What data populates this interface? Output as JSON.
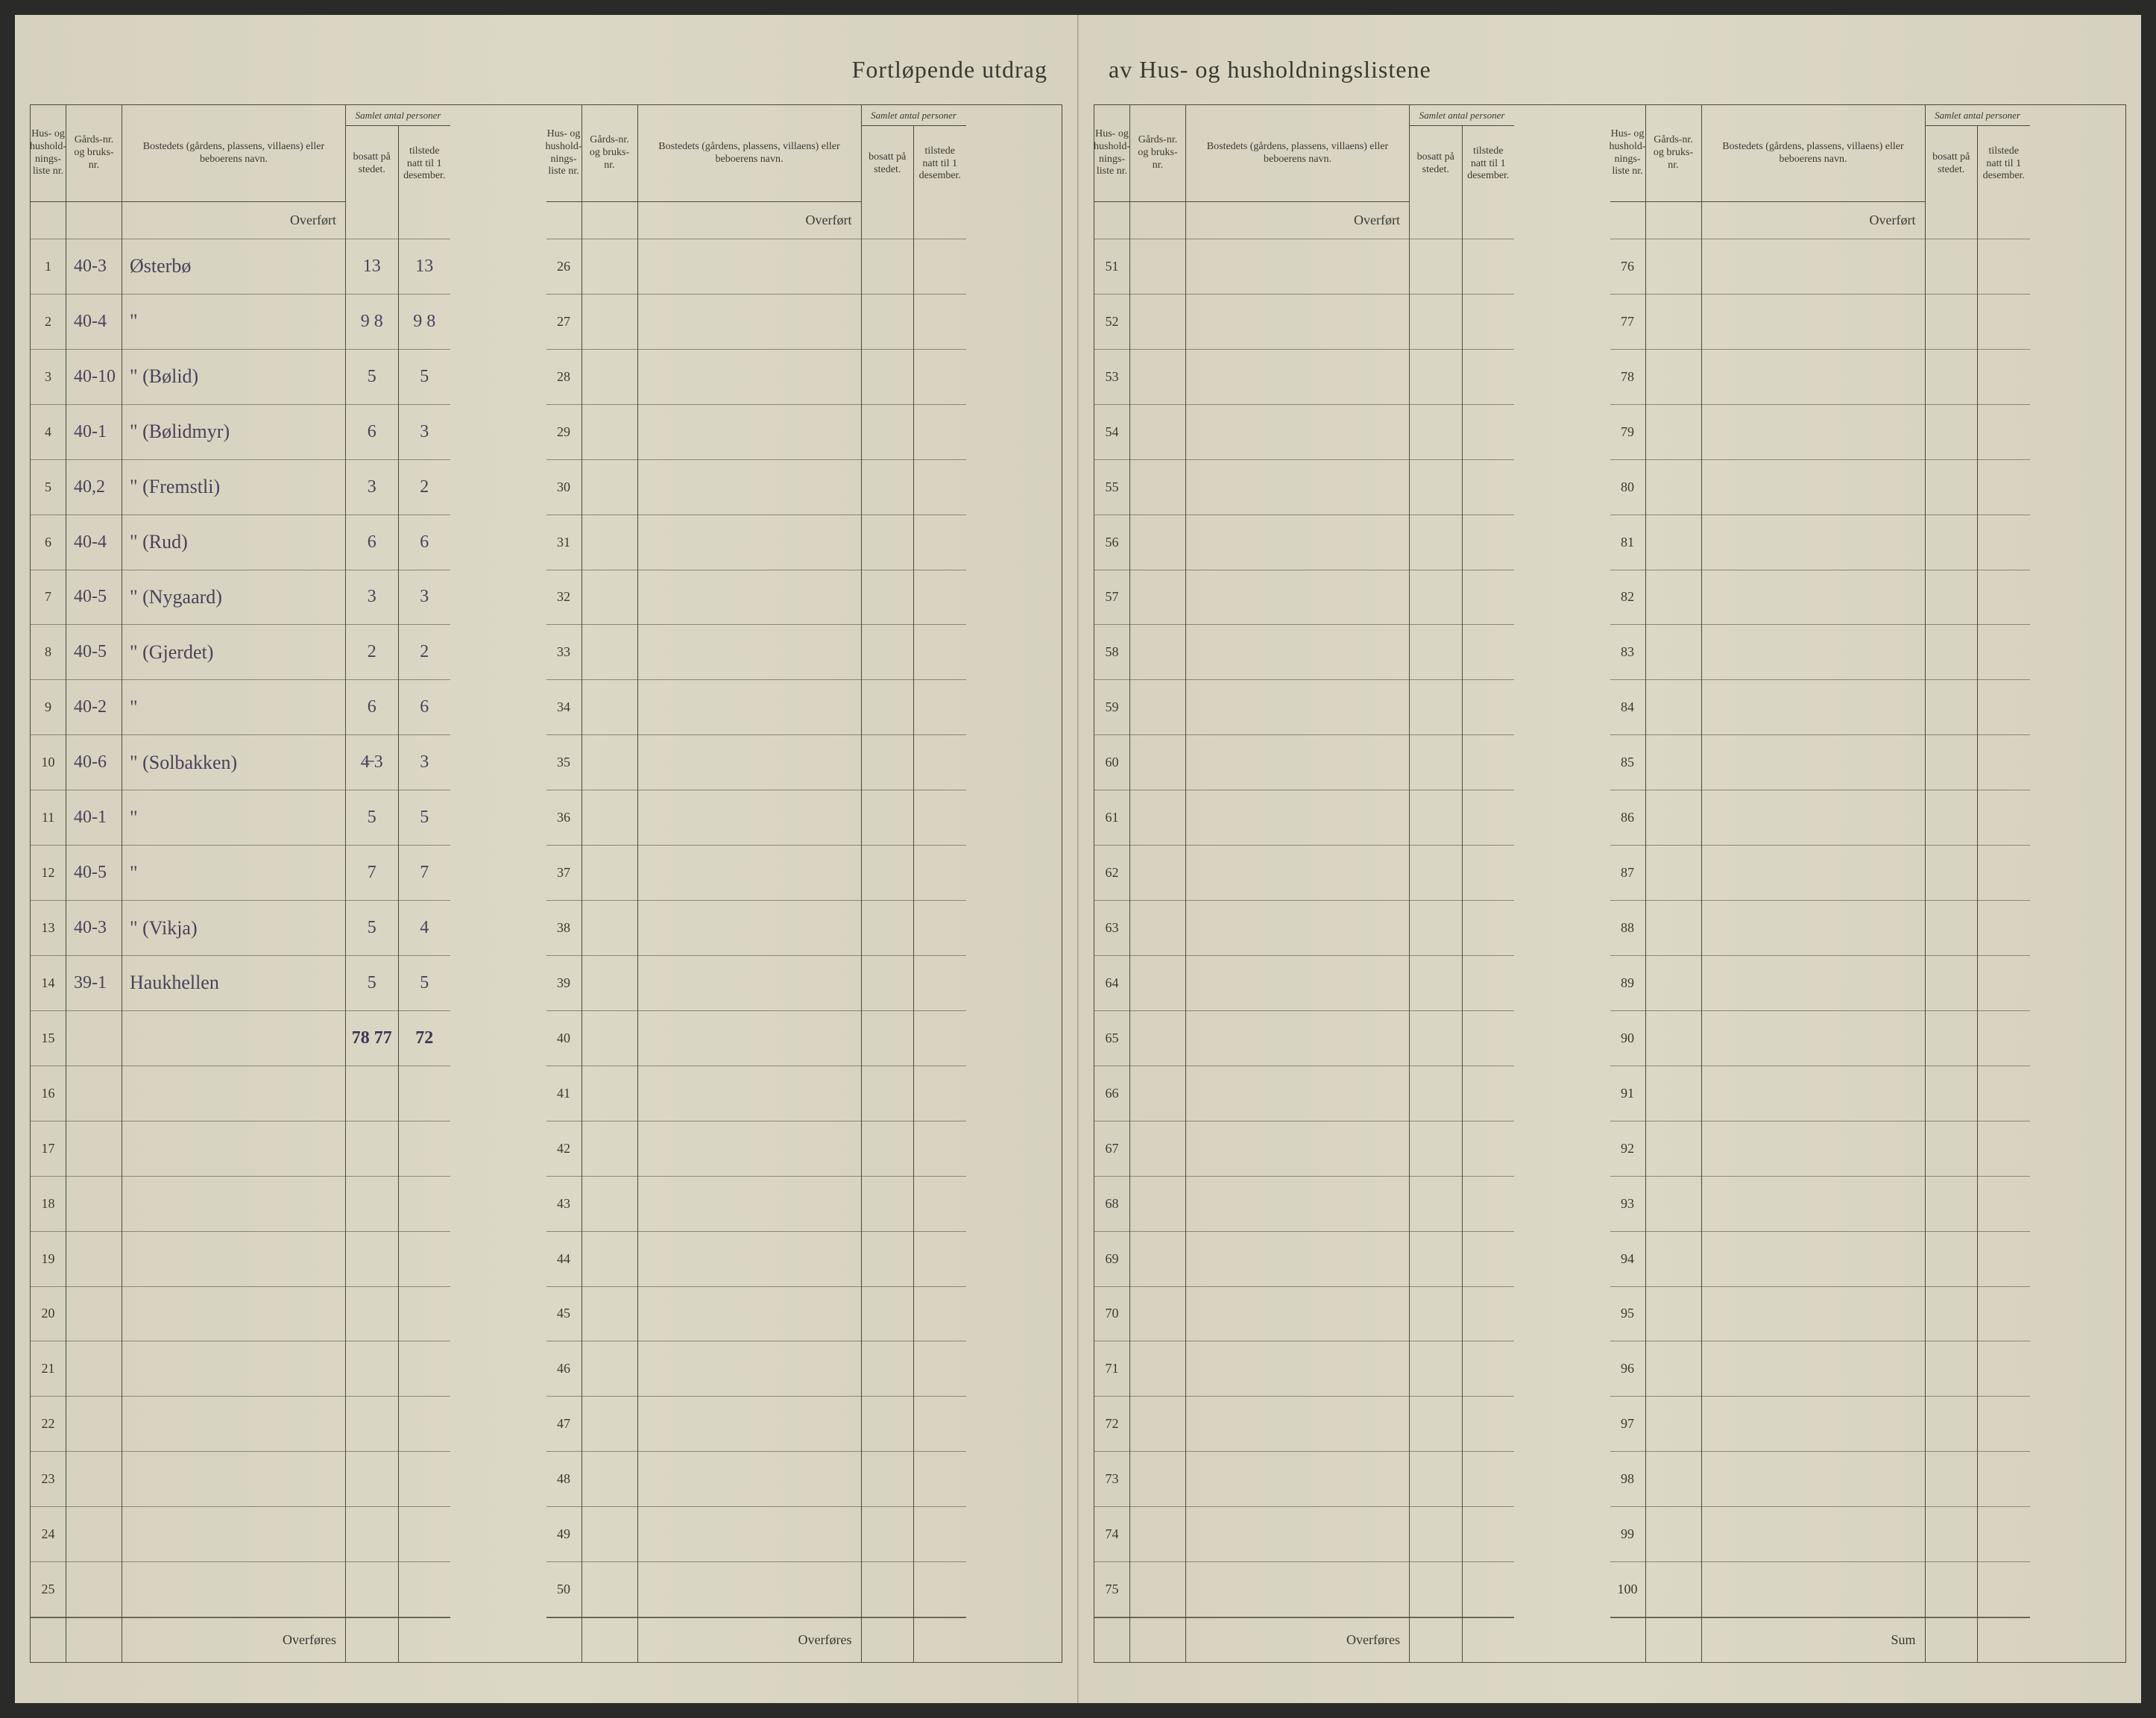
{
  "title_left": "Fortløpende utdrag",
  "title_right": "av Hus- og husholdningslistene",
  "headers": {
    "liste": "Hus- og hushold-nings-liste nr.",
    "gards": "Gårds-nr. og bruks-nr.",
    "bosted": "Bostedets (gårdens, plassens, villaens) eller beboerens navn.",
    "person_span": "Samlet antal personer",
    "bosatt": "bosatt på stedet.",
    "tilstede": "tilstede natt til 1 desember."
  },
  "overfort": "Overført",
  "overfores": "Overføres",
  "sum": "Sum",
  "rows_per_block": 25,
  "entries": [
    {
      "n": 1,
      "gards": "40-3",
      "bosted": "Østerbø",
      "bosatt": "13",
      "tilstede": "13"
    },
    {
      "n": 2,
      "gards": "40-4",
      "bosted": "\"",
      "bosatt": "9 8",
      "tilstede": "9 8"
    },
    {
      "n": 3,
      "gards": "40-10",
      "bosted": "\"   (Bølid)",
      "bosatt": "5",
      "tilstede": "5"
    },
    {
      "n": 4,
      "gards": "40-1",
      "bosted": "\"   (Bølidmyr)",
      "bosatt": "6",
      "tilstede": "3"
    },
    {
      "n": 5,
      "gards": "40,2",
      "bosted": "\"   (Fremstli)",
      "bosatt": "3",
      "tilstede": "2"
    },
    {
      "n": 6,
      "gards": "40-4",
      "bosted": "\"   (Rud)",
      "bosatt": "6",
      "tilstede": "6"
    },
    {
      "n": 7,
      "gards": "40-5",
      "bosted": "\"   (Nygaard)",
      "bosatt": "3",
      "tilstede": "3"
    },
    {
      "n": 8,
      "gards": "40-5",
      "bosted": "\"   (Gjerdet)",
      "bosatt": "2",
      "tilstede": "2"
    },
    {
      "n": 9,
      "gards": "40-2",
      "bosted": "\"",
      "bosatt": "6",
      "tilstede": "6"
    },
    {
      "n": 10,
      "gards": "40-6",
      "bosted": "\"   (Solbakken)",
      "bosatt": "4̶ 3",
      "tilstede": "3"
    },
    {
      "n": 11,
      "gards": "40-1",
      "bosted": "\"",
      "bosatt": "5",
      "tilstede": "5"
    },
    {
      "n": 12,
      "gards": "40-5",
      "bosted": "\"",
      "bosatt": "7",
      "tilstede": "7"
    },
    {
      "n": 13,
      "gards": "40-3",
      "bosted": "\"   (Vikja)",
      "bosatt": "5",
      "tilstede": "4"
    },
    {
      "n": 14,
      "gards": "39-1",
      "bosted": "Haukhellen",
      "bosatt": "5",
      "tilstede": "5"
    }
  ],
  "total": {
    "bosatt": "78 77",
    "tilstede": "72"
  },
  "block_starts": [
    1,
    26,
    51,
    76
  ]
}
